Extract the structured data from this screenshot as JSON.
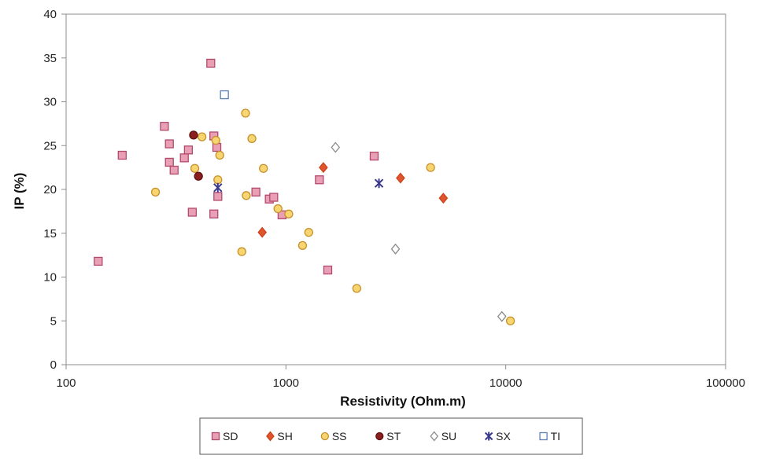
{
  "chart_data": {
    "type": "scatter",
    "xlabel": "Resistivity (Ohm.m)",
    "ylabel": "IP (%)",
    "x_scale": "log",
    "xlim": [
      100,
      100000
    ],
    "ylim": [
      0,
      40
    ],
    "x_ticks": [
      100,
      1000,
      10000,
      100000
    ],
    "y_ticks": [
      0,
      5,
      10,
      15,
      20,
      25,
      30,
      35,
      40
    ],
    "grid": false,
    "legend_position": "bottom",
    "series": [
      {
        "name": "SD",
        "marker": "square",
        "fill": "#e9a0b5",
        "stroke": "#b24a6e",
        "points": [
          [
            140,
            11.8
          ],
          [
            180,
            23.9
          ],
          [
            280,
            27.2
          ],
          [
            295,
            25.2
          ],
          [
            295,
            23.1
          ],
          [
            310,
            22.2
          ],
          [
            345,
            23.6
          ],
          [
            360,
            24.5
          ],
          [
            375,
            17.4
          ],
          [
            455,
            34.4
          ],
          [
            470,
            26.1
          ],
          [
            470,
            17.2
          ],
          [
            485,
            24.8
          ],
          [
            490,
            19.2
          ],
          [
            730,
            19.7
          ],
          [
            840,
            18.9
          ],
          [
            880,
            19.1
          ],
          [
            960,
            17.1
          ],
          [
            1420,
            21.1
          ],
          [
            1550,
            10.8
          ],
          [
            2520,
            23.8
          ]
        ]
      },
      {
        "name": "SH",
        "marker": "diamond",
        "fill": "#e0552c",
        "stroke": "#c9431d",
        "points": [
          [
            780,
            15.1
          ],
          [
            1480,
            22.5
          ],
          [
            3320,
            21.3
          ],
          [
            5200,
            19.0
          ]
        ]
      },
      {
        "name": "SS",
        "marker": "circle",
        "fill": "#f7d672",
        "stroke": "#c7902a",
        "points": [
          [
            255,
            19.7
          ],
          [
            385,
            22.4
          ],
          [
            415,
            26.0
          ],
          [
            490,
            21.1
          ],
          [
            500,
            23.9
          ],
          [
            480,
            25.6
          ],
          [
            630,
            12.9
          ],
          [
            655,
            28.7
          ],
          [
            660,
            19.3
          ],
          [
            700,
            25.8
          ],
          [
            790,
            22.4
          ],
          [
            920,
            17.8
          ],
          [
            1030,
            17.2
          ],
          [
            1190,
            13.6
          ],
          [
            1270,
            15.1
          ],
          [
            2100,
            8.7
          ],
          [
            4550,
            22.5
          ],
          [
            10500,
            5.0
          ]
        ]
      },
      {
        "name": "ST",
        "marker": "circle",
        "fill": "#8b1e1e",
        "stroke": "#5e0f0f",
        "points": [
          [
            380,
            26.2
          ],
          [
            400,
            21.5
          ]
        ]
      },
      {
        "name": "SU",
        "marker": "diamond-open",
        "fill": "#ffffff",
        "stroke": "#8a8a8a",
        "points": [
          [
            1680,
            24.8
          ],
          [
            3150,
            13.2
          ],
          [
            9600,
            5.5
          ]
        ]
      },
      {
        "name": "SX",
        "marker": "asterisk",
        "fill": "none",
        "stroke": "#3a3a8c",
        "points": [
          [
            490,
            20.2
          ],
          [
            2650,
            20.7
          ]
        ]
      },
      {
        "name": "TI",
        "marker": "square-open",
        "fill": "#ffffff",
        "stroke": "#5b80b8",
        "points": [
          [
            525,
            30.8
          ]
        ]
      }
    ]
  }
}
